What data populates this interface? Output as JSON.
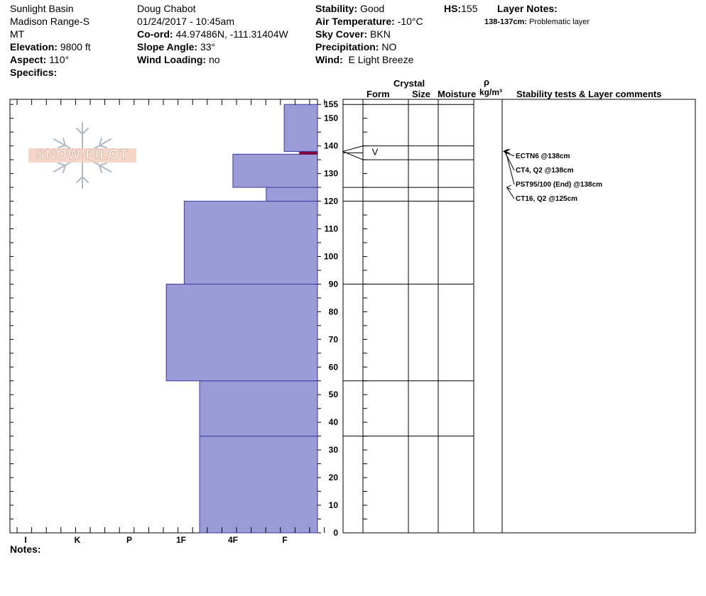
{
  "header": {
    "location": "Sunlight Basin",
    "range": "Madison Range-S",
    "state": "MT",
    "elevation_label": "Elevation:",
    "elevation": "9800 ft",
    "aspect_label": "Aspect:",
    "aspect": "110°",
    "specifics_label": "Specifics:",
    "observer": "Doug Chabot",
    "datetime": "01/24/2017 - 10:45am",
    "coord_label": "Co-ord:",
    "coord": "44.97486N, -111.31404W",
    "slope_label": "Slope Angle:",
    "slope": "33°",
    "wind_loading_label": "Wind Loading:",
    "wind_loading": "no",
    "stability_label": "Stability:",
    "stability": "Good",
    "air_temp_label": "Air Temperature:",
    "air_temp": "-10°C",
    "sky_label": "Sky Cover:",
    "sky": "BKN",
    "precip_label": "Precipitation:",
    "precip": "NO",
    "wind_label": "Wind:",
    "wind": "E Light Breeze",
    "hs_label": "HS:",
    "hs": "155",
    "layer_notes_label": "Layer Notes:",
    "layer_note_range": "138-137cm:",
    "layer_note_text": "Problematic layer"
  },
  "columns": {
    "crystal": "Crystal",
    "form": "Form",
    "size": "Size",
    "moisture": "Moisture",
    "rho": "ρ",
    "density_unit": "kg/m³",
    "stability_comments": "Stability tests & Layer comments"
  },
  "logo_text": "SNOW PILOT",
  "notes_label": "Notes:",
  "chart_data": {
    "type": "bar",
    "orientation": "horizontal",
    "y_unit": "cm",
    "ylim": [
      0,
      155
    ],
    "yticks": [
      0,
      10,
      20,
      30,
      40,
      50,
      60,
      70,
      80,
      90,
      100,
      110,
      120,
      130,
      140,
      150,
      155
    ],
    "hardness_scale": [
      "I",
      "K",
      "P",
      "1F",
      "4F",
      "F"
    ],
    "hardness_max": 6,
    "bar_color": "#9b9bd8",
    "weak_layer_color": "#800040",
    "layers": [
      {
        "bottom": 0,
        "top": 35,
        "hardness": 2.3
      },
      {
        "bottom": 35,
        "top": 55,
        "hardness": 2.3
      },
      {
        "bottom": 55,
        "top": 90,
        "hardness": 2.95
      },
      {
        "bottom": 90,
        "top": 120,
        "hardness": 2.6
      },
      {
        "bottom": 120,
        "top": 125,
        "hardness": 1.0
      },
      {
        "bottom": 125,
        "top": 137,
        "hardness": 1.65
      },
      {
        "bottom": 137,
        "top": 138,
        "hardness": 0.35,
        "weak": true
      },
      {
        "bottom": 138,
        "top": 155,
        "hardness": 0.65
      }
    ],
    "boundaries": [
      35,
      55,
      90,
      120,
      125,
      135,
      140,
      155
    ],
    "crystal_form": {
      "height": 138,
      "symbol": "V"
    },
    "stability_tests": [
      {
        "text": "ECTN6 @138cm",
        "height": 138
      },
      {
        "text": "CT4, Q2 @138cm",
        "height": 138
      },
      {
        "text": "PST95/100 (End) @138cm",
        "height": 138
      },
      {
        "text": "CT16, Q2 @125cm",
        "height": 125
      }
    ]
  }
}
